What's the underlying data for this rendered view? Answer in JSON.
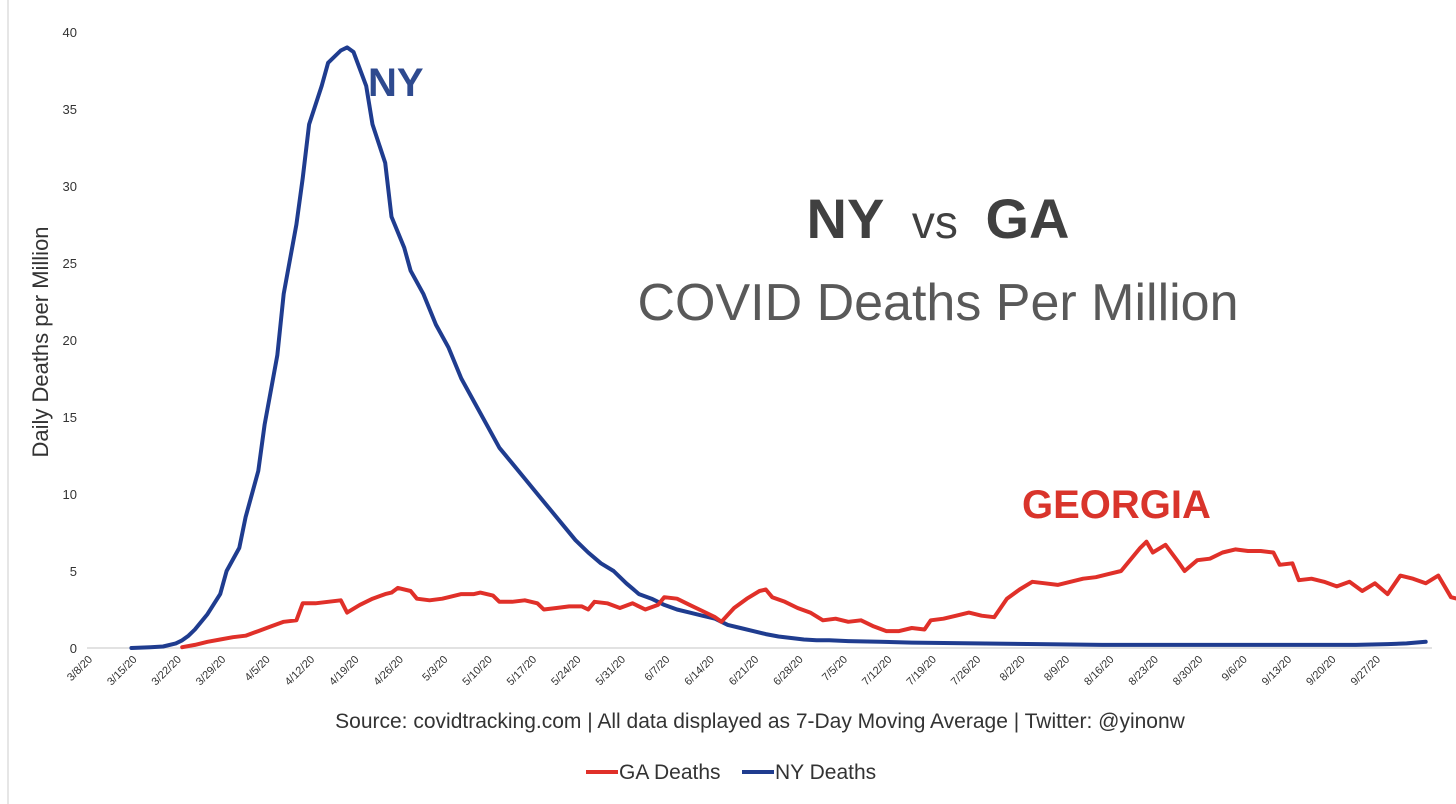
{
  "chart_data": {
    "type": "line",
    "title_part1": "NY",
    "title_part2": "vs",
    "title_part3": "GA",
    "subtitle": "COVID Deaths Per Million",
    "ylabel": "Daily Deaths per Million",
    "xlabel": "",
    "ylim": [
      0,
      40
    ],
    "yticks": [
      "0",
      "5",
      "10",
      "15",
      "20",
      "25",
      "30",
      "35",
      "40"
    ],
    "ytick_values": [
      0,
      5,
      10,
      15,
      20,
      25,
      30,
      35,
      40
    ],
    "xticks": [
      "3/8/20",
      "3/15/20",
      "3/22/20",
      "3/29/20",
      "4/5/20",
      "4/12/20",
      "4/19/20",
      "4/26/20",
      "5/3/20",
      "5/10/20",
      "5/17/20",
      "5/24/20",
      "5/31/20",
      "6/7/20",
      "6/14/20",
      "6/21/20",
      "6/28/20",
      "7/5/20",
      "7/12/20",
      "7/19/20",
      "7/26/20",
      "8/2/20",
      "8/9/20",
      "8/16/20",
      "8/23/20",
      "8/30/20",
      "9/6/20",
      "9/13/20",
      "9/20/20",
      "9/27/20"
    ],
    "x_start_label": "3/8/20",
    "x_days_total": 211,
    "annotations": {
      "ny": "NY",
      "ga": "GEORGIA"
    },
    "source": "Source: covidtracking.com | All data displayed as 7-Day Moving Average | Twitter: @yinonw",
    "colors": {
      "ga": "#e03029",
      "ny": "#1f3c8f",
      "axis": "#d9d9d9",
      "annotation_ny": "#2e4a8f",
      "annotation_ga": "#d9342b"
    },
    "series": [
      {
        "name": "NY Deaths",
        "color": "#1f3c8f",
        "points": [
          [
            7,
            0
          ],
          [
            10,
            0.05
          ],
          [
            12,
            0.1
          ],
          [
            14,
            0.3
          ],
          [
            15,
            0.5
          ],
          [
            16,
            0.8
          ],
          [
            17,
            1.2
          ],
          [
            19,
            2.2
          ],
          [
            21,
            3.5
          ],
          [
            22,
            5.0
          ],
          [
            24,
            6.5
          ],
          [
            25,
            8.5
          ],
          [
            27,
            11.5
          ],
          [
            28,
            14.5
          ],
          [
            30,
            19.0
          ],
          [
            31,
            23.0
          ],
          [
            33,
            27.5
          ],
          [
            34,
            30.5
          ],
          [
            35,
            34.0
          ],
          [
            37,
            36.5
          ],
          [
            38,
            38.0
          ],
          [
            40,
            38.8
          ],
          [
            41,
            39.0
          ],
          [
            42,
            38.7
          ],
          [
            44,
            36.5
          ],
          [
            45,
            34.0
          ],
          [
            47,
            31.5
          ],
          [
            48,
            28.0
          ],
          [
            50,
            26.0
          ],
          [
            51,
            24.5
          ],
          [
            53,
            23.0
          ],
          [
            55,
            21.0
          ],
          [
            57,
            19.5
          ],
          [
            59,
            17.5
          ],
          [
            61,
            16.0
          ],
          [
            63,
            14.5
          ],
          [
            65,
            13.0
          ],
          [
            67,
            12.0
          ],
          [
            69,
            11.0
          ],
          [
            71,
            10.0
          ],
          [
            73,
            9.0
          ],
          [
            75,
            8.0
          ],
          [
            77,
            7.0
          ],
          [
            79,
            6.2
          ],
          [
            81,
            5.5
          ],
          [
            83,
            5.0
          ],
          [
            85,
            4.2
          ],
          [
            87,
            3.5
          ],
          [
            89,
            3.2
          ],
          [
            91,
            2.8
          ],
          [
            93,
            2.5
          ],
          [
            95,
            2.3
          ],
          [
            97,
            2.1
          ],
          [
            99,
            1.9
          ],
          [
            101,
            1.5
          ],
          [
            103,
            1.3
          ],
          [
            105,
            1.1
          ],
          [
            107,
            0.9
          ],
          [
            109,
            0.75
          ],
          [
            111,
            0.65
          ],
          [
            113,
            0.55
          ],
          [
            115,
            0.5
          ],
          [
            117,
            0.5
          ],
          [
            120,
            0.45
          ],
          [
            125,
            0.4
          ],
          [
            130,
            0.35
          ],
          [
            140,
            0.3
          ],
          [
            150,
            0.25
          ],
          [
            160,
            0.2
          ],
          [
            170,
            0.2
          ],
          [
            180,
            0.2
          ],
          [
            190,
            0.2
          ],
          [
            195,
            0.2
          ],
          [
            200,
            0.2
          ],
          [
            205,
            0.25
          ],
          [
            208,
            0.3
          ],
          [
            211,
            0.4
          ]
        ]
      },
      {
        "name": "GA Deaths",
        "color": "#e03029",
        "points": [
          [
            15,
            0.05
          ],
          [
            17,
            0.2
          ],
          [
            19,
            0.4
          ],
          [
            21,
            0.55
          ],
          [
            23,
            0.7
          ],
          [
            25,
            0.8
          ],
          [
            27,
            1.1
          ],
          [
            29,
            1.4
          ],
          [
            31,
            1.7
          ],
          [
            33,
            1.8
          ],
          [
            34,
            2.9
          ],
          [
            36,
            2.9
          ],
          [
            38,
            3.0
          ],
          [
            40,
            3.1
          ],
          [
            41,
            2.3
          ],
          [
            43,
            2.8
          ],
          [
            45,
            3.2
          ],
          [
            47,
            3.5
          ],
          [
            48,
            3.6
          ],
          [
            49,
            3.9
          ],
          [
            51,
            3.7
          ],
          [
            52,
            3.2
          ],
          [
            54,
            3.1
          ],
          [
            56,
            3.2
          ],
          [
            57,
            3.3
          ],
          [
            59,
            3.5
          ],
          [
            61,
            3.5
          ],
          [
            62,
            3.6
          ],
          [
            64,
            3.4
          ],
          [
            65,
            3.0
          ],
          [
            67,
            3.0
          ],
          [
            69,
            3.1
          ],
          [
            71,
            2.9
          ],
          [
            72,
            2.5
          ],
          [
            74,
            2.6
          ],
          [
            76,
            2.7
          ],
          [
            78,
            2.7
          ],
          [
            79,
            2.5
          ],
          [
            80,
            3.0
          ],
          [
            82,
            2.9
          ],
          [
            84,
            2.6
          ],
          [
            86,
            2.9
          ],
          [
            88,
            2.5
          ],
          [
            90,
            2.8
          ],
          [
            91,
            3.3
          ],
          [
            93,
            3.2
          ],
          [
            95,
            2.8
          ],
          [
            97,
            2.4
          ],
          [
            99,
            2.0
          ],
          [
            100,
            1.7
          ],
          [
            102,
            2.6
          ],
          [
            104,
            3.2
          ],
          [
            106,
            3.7
          ],
          [
            107,
            3.8
          ],
          [
            108,
            3.3
          ],
          [
            110,
            3.0
          ],
          [
            112,
            2.6
          ],
          [
            114,
            2.3
          ],
          [
            116,
            1.8
          ],
          [
            118,
            1.9
          ],
          [
            120,
            1.7
          ],
          [
            122,
            1.8
          ],
          [
            124,
            1.4
          ],
          [
            126,
            1.1
          ],
          [
            128,
            1.1
          ],
          [
            130,
            1.3
          ],
          [
            132,
            1.2
          ],
          [
            133,
            1.8
          ],
          [
            135,
            1.9
          ],
          [
            137,
            2.1
          ],
          [
            139,
            2.3
          ],
          [
            141,
            2.1
          ],
          [
            143,
            2.0
          ],
          [
            145,
            3.2
          ],
          [
            147,
            3.8
          ],
          [
            149,
            4.3
          ],
          [
            151,
            4.2
          ],
          [
            153,
            4.1
          ],
          [
            155,
            4.3
          ],
          [
            157,
            4.5
          ],
          [
            159,
            4.6
          ],
          [
            161,
            4.8
          ],
          [
            163,
            5.0
          ],
          [
            165,
            6.0
          ],
          [
            166,
            6.5
          ],
          [
            167,
            6.9
          ],
          [
            168,
            6.2
          ],
          [
            170,
            6.7
          ],
          [
            172,
            5.6
          ],
          [
            173,
            5.0
          ],
          [
            175,
            5.7
          ],
          [
            177,
            5.8
          ],
          [
            179,
            6.2
          ],
          [
            181,
            6.4
          ],
          [
            183,
            6.3
          ],
          [
            185,
            6.3
          ],
          [
            187,
            6.2
          ],
          [
            188,
            5.4
          ],
          [
            190,
            5.5
          ],
          [
            191,
            4.4
          ],
          [
            193,
            4.5
          ],
          [
            195,
            4.3
          ],
          [
            197,
            4.0
          ],
          [
            199,
            4.3
          ],
          [
            201,
            3.7
          ],
          [
            203,
            4.2
          ],
          [
            205,
            3.5
          ],
          [
            207,
            4.7
          ],
          [
            209,
            4.5
          ],
          [
            211,
            4.2
          ],
          [
            213,
            4.7
          ],
          [
            215,
            3.3
          ],
          [
            217,
            3.1
          ],
          [
            219,
            2.9
          ]
        ]
      }
    ],
    "legend": [
      {
        "label": "GA Deaths",
        "color": "#e03029"
      },
      {
        "label": "NY Deaths",
        "color": "#1f3c8f"
      }
    ]
  }
}
